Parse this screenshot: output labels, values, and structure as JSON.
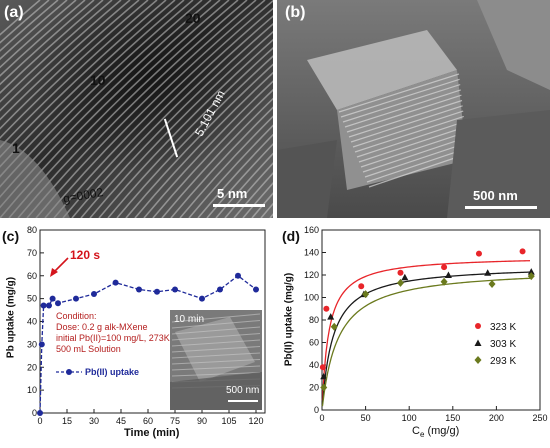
{
  "panels": {
    "a": {
      "label": "(a)",
      "annotations": {
        "n20": "20",
        "n10": "10",
        "n1": "1",
        "g": "g=0002",
        "dspacing": "5.101 nm"
      },
      "scalebar": "5 nm"
    },
    "b": {
      "label": "(b)",
      "scalebar": "500 nm"
    },
    "c": {
      "label": "(c)",
      "arrow_label": "120 s",
      "condition_lines": [
        "Condition:",
        "Dose: 0.2 g  alk-MXene",
        "initial Pb(II)=100 mg/L,  273K",
        "500 mL Solution"
      ],
      "inset": {
        "label": "10 min",
        "scalebar": "500 nm"
      }
    },
    "d": {
      "label": "(d)"
    }
  },
  "chart_data": [
    {
      "type": "line",
      "xlabel": "Time (min)",
      "ylabel": "Pb uptake (mg/g)",
      "xlim": [
        0,
        125
      ],
      "ylim": [
        0,
        80
      ],
      "xticks": [
        0,
        15,
        30,
        45,
        60,
        75,
        90,
        105,
        120
      ],
      "yticks": [
        0,
        10,
        20,
        30,
        40,
        50,
        60,
        70,
        80
      ],
      "series": [
        {
          "name": "Pb(II) uptake",
          "color": "#1f2a9a",
          "x": [
            0,
            1,
            2,
            5,
            7,
            10,
            20,
            30,
            42,
            55,
            65,
            75,
            90,
            100,
            110,
            120
          ],
          "values": [
            0,
            30,
            47,
            47,
            50,
            48,
            50,
            52,
            57,
            54,
            53,
            54,
            50,
            54,
            60,
            54
          ]
        }
      ]
    },
    {
      "type": "scatter",
      "xlabel": "C",
      "xlabel_sub": "e",
      "xlabel_unit": " (mg/g)",
      "ylabel": "Pb(II) uptake (mg/g)",
      "xlim": [
        0,
        250
      ],
      "ylim": [
        0,
        160
      ],
      "xticks": [
        0,
        50,
        100,
        150,
        200,
        250
      ],
      "yticks": [
        0,
        20,
        40,
        60,
        80,
        100,
        120,
        140,
        160
      ],
      "series": [
        {
          "name": "323 K",
          "color": "#e8252a",
          "marker": "circle",
          "x": [
            1,
            5,
            45,
            90,
            140,
            180,
            230
          ],
          "values": [
            38,
            90,
            110,
            122,
            127,
            139,
            141
          ],
          "fit": {
            "qmax": 137,
            "k": 0.13
          }
        },
        {
          "name": "303 K",
          "color": "#1a1a1a",
          "marker": "triangle",
          "x": [
            2,
            10,
            48,
            95,
            145,
            190,
            240
          ],
          "values": [
            30,
            83,
            103,
            118,
            120,
            122,
            123
          ],
          "fit": {
            "qmax": 129,
            "k": 0.08
          }
        },
        {
          "name": "293 K",
          "color": "#6b7a1e",
          "marker": "diamond",
          "x": [
            2,
            14,
            50,
            90,
            140,
            195,
            240
          ],
          "values": [
            20,
            74,
            103,
            113,
            114,
            112,
            119
          ],
          "fit": {
            "qmax": 126,
            "k": 0.055
          }
        }
      ]
    }
  ]
}
